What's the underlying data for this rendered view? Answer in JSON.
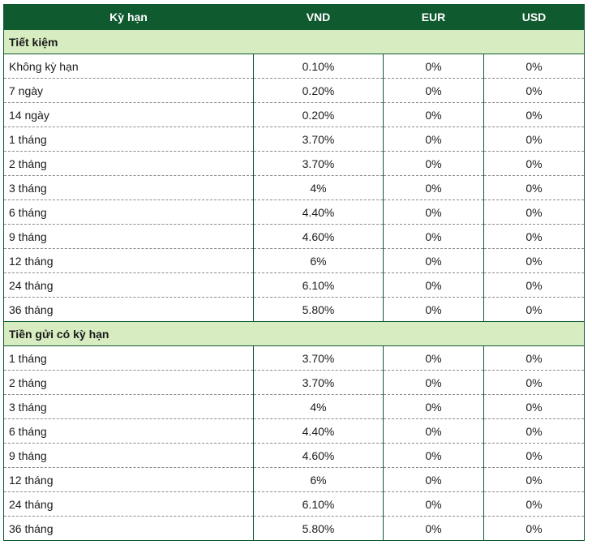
{
  "header": {
    "term": "Kỳ hạn",
    "vnd": "VND",
    "eur": "EUR",
    "usd": "USD"
  },
  "sections": [
    {
      "title": "Tiết kiệm",
      "rows": [
        {
          "term": "Không kỳ hạn",
          "vnd": "0.10%",
          "eur": "0%",
          "usd": "0%"
        },
        {
          "term": "7 ngày",
          "vnd": "0.20%",
          "eur": "0%",
          "usd": "0%"
        },
        {
          "term": "14 ngày",
          "vnd": "0.20%",
          "eur": "0%",
          "usd": "0%"
        },
        {
          "term": "1 tháng",
          "vnd": "3.70%",
          "eur": "0%",
          "usd": "0%"
        },
        {
          "term": "2 tháng",
          "vnd": "3.70%",
          "eur": "0%",
          "usd": "0%"
        },
        {
          "term": "3 tháng",
          "vnd": "4%",
          "eur": "0%",
          "usd": "0%"
        },
        {
          "term": "6 tháng",
          "vnd": "4.40%",
          "eur": "0%",
          "usd": "0%"
        },
        {
          "term": "9 tháng",
          "vnd": "4.60%",
          "eur": "0%",
          "usd": "0%"
        },
        {
          "term": "12 tháng",
          "vnd": "6%",
          "eur": "0%",
          "usd": "0%"
        },
        {
          "term": "24 tháng",
          "vnd": "6.10%",
          "eur": "0%",
          "usd": "0%"
        },
        {
          "term": "36 tháng",
          "vnd": "5.80%",
          "eur": "0%",
          "usd": "0%"
        }
      ]
    },
    {
      "title": "Tiền gửi có kỳ hạn",
      "rows": [
        {
          "term": "1 tháng",
          "vnd": "3.70%",
          "eur": "0%",
          "usd": "0%"
        },
        {
          "term": "2 tháng",
          "vnd": "3.70%",
          "eur": "0%",
          "usd": "0%"
        },
        {
          "term": "3 tháng",
          "vnd": "4%",
          "eur": "0%",
          "usd": "0%"
        },
        {
          "term": "6 tháng",
          "vnd": "4.40%",
          "eur": "0%",
          "usd": "0%"
        },
        {
          "term": "9 tháng",
          "vnd": "4.60%",
          "eur": "0%",
          "usd": "0%"
        },
        {
          "term": "12 tháng",
          "vnd": "6%",
          "eur": "0%",
          "usd": "0%"
        },
        {
          "term": "24 tháng",
          "vnd": "6.10%",
          "eur": "0%",
          "usd": "0%"
        },
        {
          "term": "36 tháng",
          "vnd": "5.80%",
          "eur": "0%",
          "usd": "0%"
        }
      ]
    }
  ],
  "colors": {
    "header_bg": "#0f5a2f",
    "section_bg": "#d7ecc1"
  }
}
